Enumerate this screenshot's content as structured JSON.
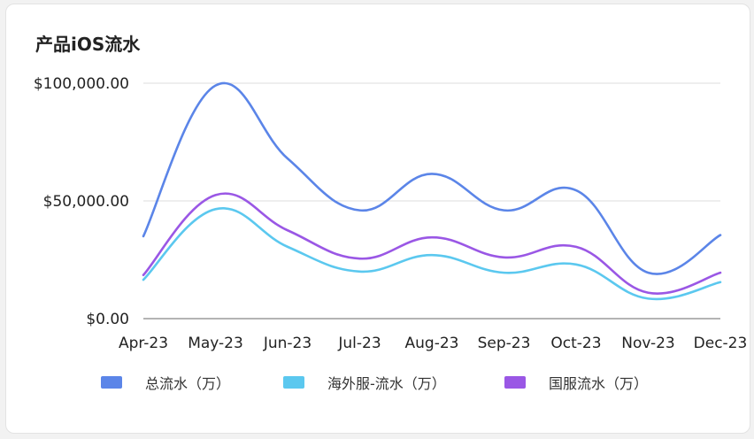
{
  "chart_data": {
    "type": "line",
    "title": "产品iOS流水",
    "categories": [
      "Apr-23",
      "May-23",
      "Jun-23",
      "Jul-23",
      "Aug-23",
      "Sep-23",
      "Oct-23",
      "Nov-23",
      "Dec-23"
    ],
    "y_ticks": [
      "$0.00",
      "$50,000.00",
      "$100,000.00"
    ],
    "ylim": [
      0,
      100000
    ],
    "grid": true,
    "legend_position": "bottom",
    "series": [
      {
        "name": "总流水（万）",
        "color": "#5b85e8",
        "values": [
          35000,
          99000,
          68000,
          46000,
          61500,
          46000,
          54500,
          19500,
          35500
        ]
      },
      {
        "name": "海外服-流水（万）",
        "color": "#5bc8ef",
        "values": [
          16500,
          46500,
          30500,
          20000,
          27000,
          19500,
          23000,
          8500,
          15500
        ]
      },
      {
        "name": "国服流水（万）",
        "color": "#9a57e5",
        "values": [
          18500,
          52500,
          37500,
          25500,
          34500,
          26000,
          30500,
          11000,
          19500
        ]
      }
    ]
  }
}
